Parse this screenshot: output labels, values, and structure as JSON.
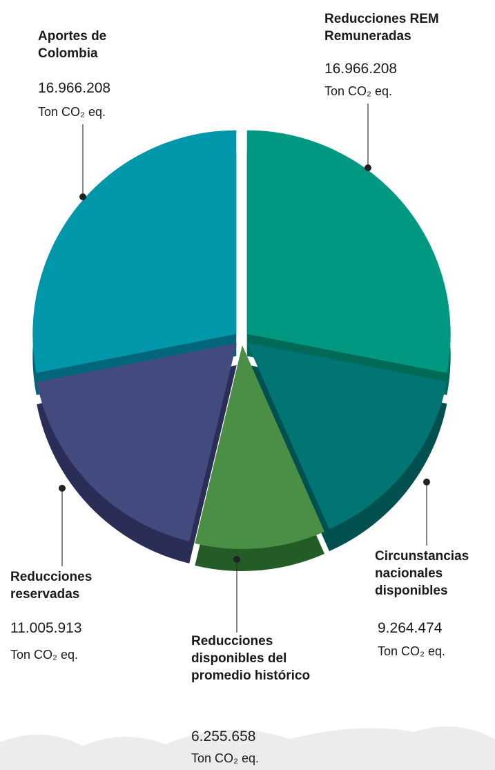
{
  "chart_data": {
    "type": "pie",
    "categories": [
      "Reducciones REM Remuneradas",
      "Circunstancias nacionales disponibles",
      "Reducciones disponibles del promedio histórico",
      "Reducciones reservadas",
      "Aportes de Colombia"
    ],
    "values": [
      16966208,
      9264474,
      6255658,
      11005913,
      16966208
    ],
    "value_labels": [
      "16.966.208",
      "9.264.474",
      "6.255.658",
      "11.005.913",
      "16.966.208"
    ],
    "unit": "Ton CO₂ eq.",
    "colors": [
      "#009880",
      "#007574",
      "#4a8f45",
      "#434a7e",
      "#0097aa"
    ],
    "side_colors": [
      "#006a57",
      "#00504f",
      "#245c27",
      "#2a2d55",
      "#00677a"
    ]
  }
}
